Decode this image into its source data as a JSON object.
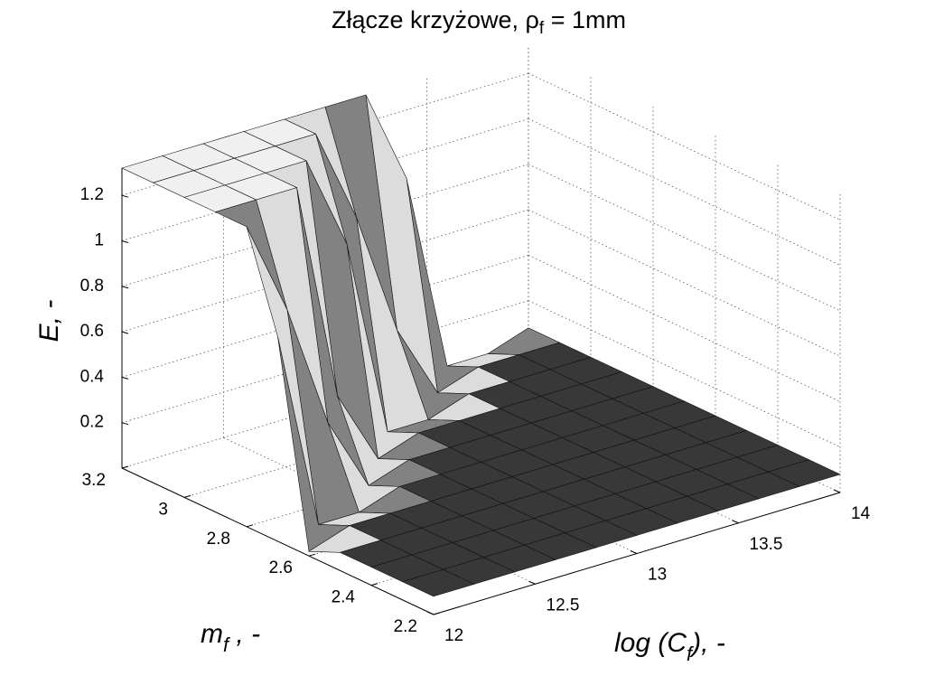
{
  "chart_data": {
    "type": "surface",
    "title": {
      "text": "Złącze krzyżowe, ρ",
      "subscript": "f",
      "suffix": " = 1mm"
    },
    "zlabel": "E, -",
    "ylabel": {
      "text": "m",
      "subscript": "f",
      "suffix": " , -"
    },
    "xlabel": {
      "text": "log (C",
      "subscript": "f",
      "suffix": "), -"
    },
    "x": [
      12,
      12.2,
      12.4,
      12.6,
      12.8,
      13,
      13.2,
      13.4,
      13.6,
      13.8,
      14
    ],
    "y": [
      2.2,
      2.3,
      2.4,
      2.5,
      2.6,
      2.7,
      2.8,
      2.9,
      3,
      3.1,
      3.2
    ],
    "z": [
      [
        0.08,
        0.08,
        0.08,
        0.08,
        0.08,
        0.08,
        0.08,
        0.08,
        0.08,
        0.08,
        0.08
      ],
      [
        0.08,
        0.08,
        0.08,
        0.08,
        0.08,
        0.08,
        0.08,
        0.08,
        0.08,
        0.08,
        0.08
      ],
      [
        0.08,
        0.08,
        0.08,
        0.08,
        0.08,
        0.08,
        0.08,
        0.08,
        0.08,
        0.08,
        0.08
      ],
      [
        0.08,
        0.08,
        0.08,
        0.08,
        0.08,
        0.08,
        0.08,
        0.08,
        0.08,
        0.08,
        0.08
      ],
      [
        0.02,
        0.08,
        0.08,
        0.08,
        0.08,
        0.08,
        0.08,
        0.08,
        0.08,
        0.08,
        0.08
      ],
      [
        0.9,
        0.02,
        0.02,
        0.08,
        0.08,
        0.08,
        0.08,
        0.08,
        0.08,
        0.08,
        0.08
      ],
      [
        1.32,
        0.9,
        0.35,
        0.02,
        0.08,
        0.08,
        0.08,
        0.08,
        0.08,
        0.08,
        0.08
      ],
      [
        1.32,
        1.32,
        1.32,
        0.35,
        0.02,
        0.08,
        0.08,
        0.08,
        0.08,
        0.08,
        0.08
      ],
      [
        1.32,
        1.32,
        1.32,
        1.32,
        0.9,
        0.02,
        0.02,
        0.08,
        0.08,
        0.08,
        0.08
      ],
      [
        1.32,
        1.32,
        1.32,
        1.32,
        1.32,
        0.9,
        0.35,
        0.02,
        0.08,
        0.08,
        0.08
      ],
      [
        1.32,
        1.32,
        1.32,
        1.32,
        1.32,
        1.32,
        1.32,
        0.9,
        0.02,
        0.02,
        0.08
      ]
    ],
    "xlim": [
      12,
      14
    ],
    "xticks": [
      12,
      12.5,
      13,
      13.5,
      14
    ],
    "ylim": [
      2.2,
      3.2
    ],
    "yticks": [
      2.2,
      2.4,
      2.6,
      2.8,
      3,
      3.2
    ],
    "zlim": [
      0,
      1.32
    ],
    "zticks": [
      0.2,
      0.4,
      0.6,
      0.8,
      1,
      1.2
    ],
    "grid": true
  }
}
